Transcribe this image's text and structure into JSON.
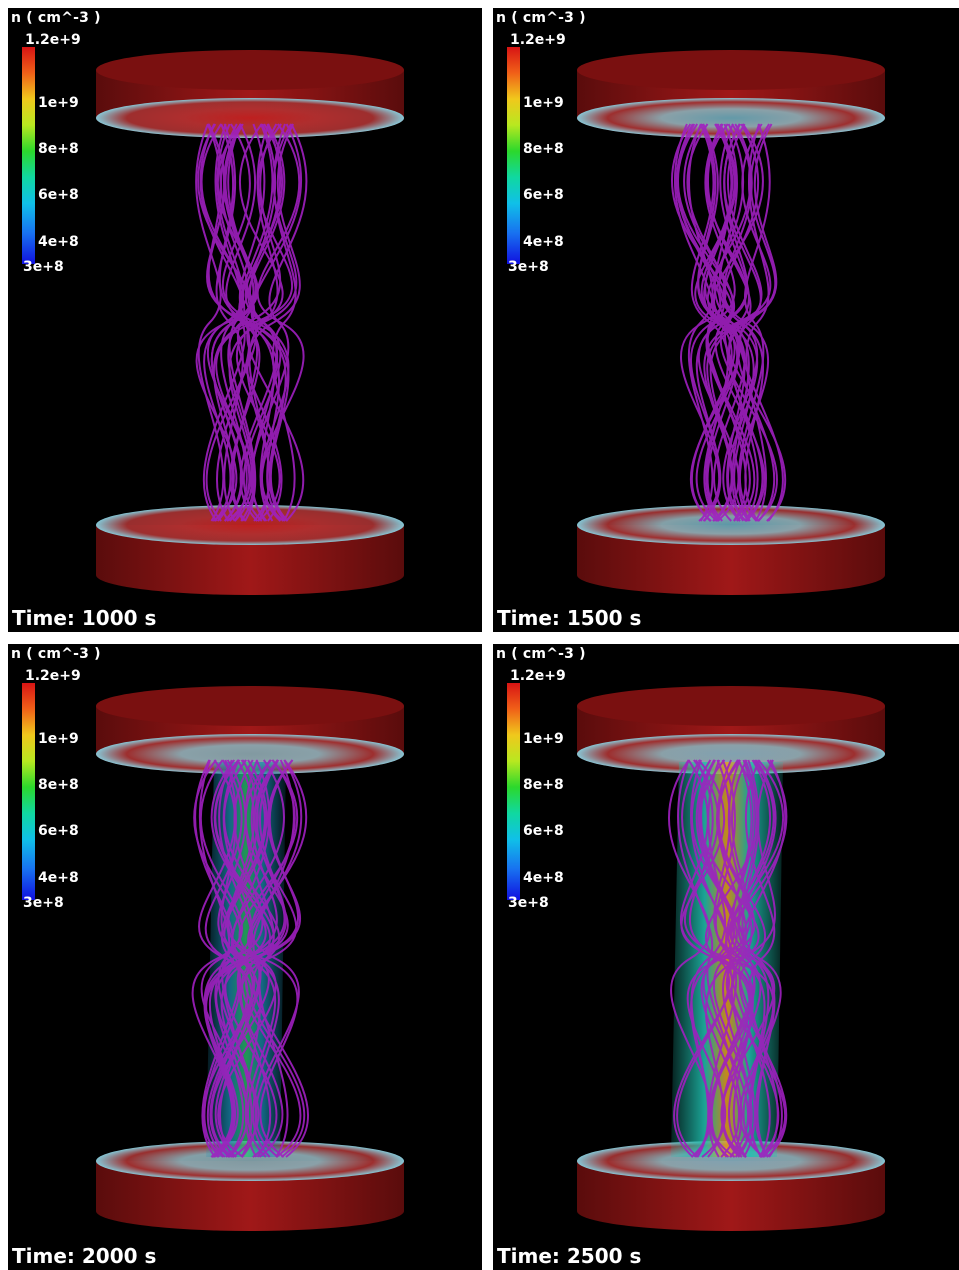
{
  "colorbar": {
    "title": "n ( cm^-3 )",
    "max_label": "1.2e+9",
    "min_label": "3e+8",
    "tick_labels": [
      "1e+9",
      "8e+8",
      "6e+8",
      "4e+8"
    ],
    "colors": [
      "#d81414",
      "#f0c81c",
      "#2cd82c",
      "#10c0e8",
      "#1010e0"
    ]
  },
  "panels": [
    {
      "time_label": "Time: 1000 s",
      "time_s": 1000
    },
    {
      "time_label": "Time: 1500 s",
      "time_s": 1500
    },
    {
      "time_label": "Time: 2000 s",
      "time_s": 2000
    },
    {
      "time_label": "Time: 2500 s",
      "time_s": 2500
    }
  ],
  "colors": {
    "background": "#000000",
    "border": "#ffffff",
    "field_lines": "#a020c0",
    "disk": "#8a1414"
  }
}
